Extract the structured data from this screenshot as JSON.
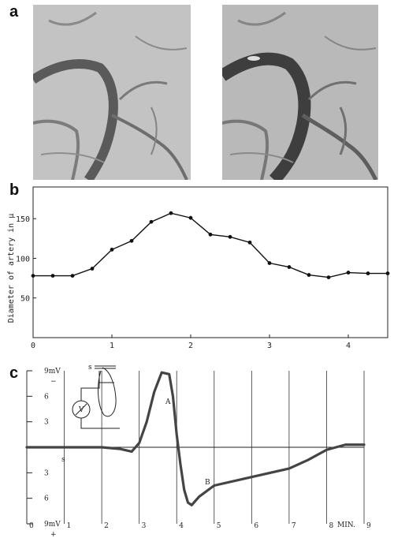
{
  "panels": {
    "a": "a",
    "b": "b",
    "c": "c"
  },
  "photos": [
    {
      "name": "microscope-image-left",
      "tone": "#b8b8b8"
    },
    {
      "name": "microscope-image-right",
      "tone": "#b3b3b3"
    }
  ],
  "chart_data": [
    {
      "type": "line",
      "ylabel": "Diameter of artery in μ",
      "xlabel": "",
      "xlim": [
        0,
        4.5
      ],
      "ylim": [
        0,
        190
      ],
      "x_ticks": [
        0,
        1,
        2,
        3,
        4
      ],
      "y_ticks": [
        50,
        100,
        150
      ],
      "series": [
        {
          "x": [
            0,
            0.25,
            0.5,
            0.75,
            1.0,
            1.25,
            1.5,
            1.75,
            2.0,
            2.25,
            2.5,
            2.75,
            3.0,
            3.25,
            3.5,
            3.75,
            4.0,
            4.25,
            4.5
          ],
          "values": [
            78,
            78,
            78,
            87,
            111,
            122,
            146,
            157,
            151,
            130,
            127,
            120,
            94,
            89,
            79,
            76,
            82,
            81,
            81
          ]
        }
      ],
      "color": "#111111"
    },
    {
      "type": "line",
      "xlabel": "MIN.",
      "xlim": [
        0,
        9
      ],
      "ylim": [
        -9,
        9
      ],
      "x_tick_labels": [
        "0",
        "1",
        "2",
        "3",
        "4",
        "5",
        "6",
        "7",
        "8",
        "9"
      ],
      "y_tick_labels": [
        "9mV",
        "6",
        "3",
        "3",
        "6",
        "9mV"
      ],
      "y_tick_values": [
        9,
        6,
        3,
        -3,
        -6,
        -9
      ],
      "polarity_top": "−",
      "polarity_bottom": "+",
      "x_marker": "s",
      "inset_labels": {
        "s": "s",
        "v": "V"
      },
      "curve_labels": [
        "A",
        "B"
      ],
      "series": [
        {
          "x": [
            0,
            1,
            2,
            2.5,
            2.8,
            3.0,
            3.2,
            3.4,
            3.6,
            3.8,
            3.9,
            4.0,
            4.1,
            4.2,
            4.3,
            4.4,
            4.6,
            5.0,
            6.0,
            7.0,
            7.5,
            8.0,
            8.5,
            9.0
          ],
          "values": [
            0,
            0,
            0,
            -0.2,
            -0.5,
            0.5,
            3.0,
            6.5,
            8.8,
            8.6,
            6.0,
            1.5,
            -2.0,
            -5.0,
            -6.5,
            -6.8,
            -5.8,
            -4.5,
            -3.5,
            -2.5,
            -1.5,
            -0.3,
            0.3,
            0.3
          ]
        }
      ],
      "color": "#444444"
    }
  ]
}
